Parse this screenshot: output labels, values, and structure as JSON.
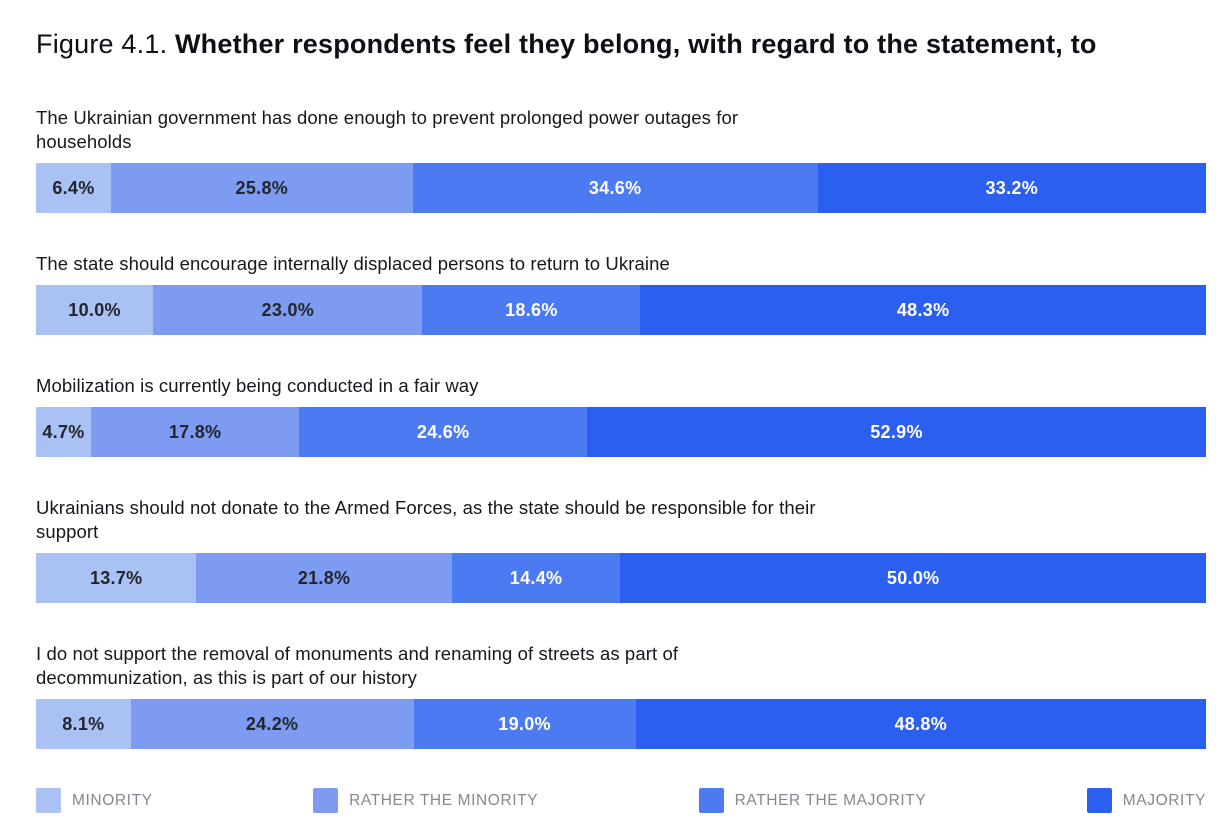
{
  "figure": {
    "title_prefix": "Figure 4.1. ",
    "title_main": "Whether respondents feel they belong, with regard to the statement, to"
  },
  "palette": {
    "minority": "#A9C2F3",
    "rather_the_minority": "#7D9BF0",
    "rather_the_majority": "#4C7BF1",
    "majority": "#2B5FF0",
    "dark_value_text": "#22252E",
    "light_value_text": "#FFFFFF",
    "statement_text": "#16181D",
    "legend_text": "#85888E"
  },
  "legend": {
    "items": [
      {
        "label": "MINORITY",
        "color": "#A9C2F3"
      },
      {
        "label": "RATHER THE MINORITY",
        "color": "#7D9BF0"
      },
      {
        "label": "RATHER THE MAJORITY",
        "color": "#4C7BF1"
      },
      {
        "label": "MAJORITY",
        "color": "#2B5FF0"
      }
    ]
  },
  "chart_data": {
    "type": "bar",
    "orientation": "horizontal_stacked",
    "unit": "%",
    "title": "Figure 4.1. Whether respondents feel they belong, with regard to the statement, to",
    "legend_position": "bottom",
    "grid": false,
    "categories": [
      "The Ukrainian government has done enough to prevent prolonged power outages for households",
      "The state should encourage internally displaced persons to return to Ukraine",
      "Mobilization is currently being conducted in a fair way",
      "Ukrainians should not donate to the Armed Forces, as the state should be responsible for their support",
      "I do not support the removal of monuments and renaming of streets as part of decommunization, as this is part of our history"
    ],
    "series": [
      {
        "name": "Minority",
        "color": "#A9C2F3",
        "label_color": "#22252E",
        "values": [
          6.4,
          10.0,
          4.7,
          13.7,
          8.1
        ]
      },
      {
        "name": "Rather the minority",
        "color": "#7D9BF0",
        "label_color": "#22252E",
        "values": [
          25.8,
          23.0,
          17.8,
          21.8,
          24.2
        ]
      },
      {
        "name": "Rather the majority",
        "color": "#4C7BF1",
        "label_color": "#FFFFFF",
        "values": [
          34.6,
          18.6,
          24.6,
          14.4,
          19.0
        ]
      },
      {
        "name": "Majority",
        "color": "#2B5FF0",
        "label_color": "#FFFFFF",
        "values": [
          33.2,
          48.3,
          52.9,
          50.0,
          48.8
        ]
      }
    ],
    "value_labels": [
      [
        "6.4%",
        "25.8%",
        "34.6%",
        "33.2%"
      ],
      [
        "10.0%",
        "23.0%",
        "18.6%",
        "48.3%"
      ],
      [
        "4.7%",
        "17.8%",
        "24.6%",
        "52.9%"
      ],
      [
        "13.7%",
        "21.8%",
        "14.4%",
        "50.0%"
      ],
      [
        "8.1%",
        "24.2%",
        "19.0%",
        "48.8%"
      ]
    ]
  }
}
